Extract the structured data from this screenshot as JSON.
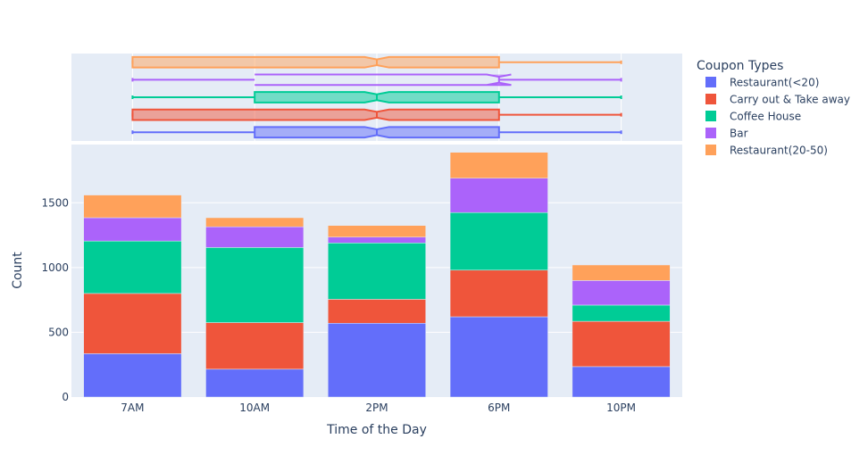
{
  "colors": {
    "plot_bg": "#e5ecf6",
    "grid": "#ffffff",
    "text": "#2a3f5f"
  },
  "chart_data": {
    "type": "bar",
    "barmode": "stack",
    "title": "",
    "xlabel": "Time of the Day",
    "ylabel": "Count",
    "categories": [
      "7AM",
      "10AM",
      "2PM",
      "6PM",
      "10PM"
    ],
    "ylim": [
      0,
      1950
    ],
    "yticks": [
      0,
      500,
      1000,
      1500
    ],
    "grid": true,
    "legend": {
      "title": "Coupon Types",
      "placement": "right"
    },
    "series": [
      {
        "name": "Restaurant(<20)",
        "color": "#636efa",
        "values": [
          335,
          215,
          570,
          620,
          235
        ]
      },
      {
        "name": "Carry out & Take away",
        "color": "#ef553b",
        "values": [
          465,
          360,
          185,
          360,
          350
        ]
      },
      {
        "name": "Coffee House",
        "color": "#00cc96",
        "values": [
          405,
          580,
          435,
          445,
          125
        ]
      },
      {
        "name": "Bar",
        "color": "#ab63fa",
        "values": [
          180,
          160,
          45,
          265,
          190
        ]
      },
      {
        "name": "Restaurant(20-50)",
        "color": "#ffa15a",
        "values": [
          175,
          70,
          90,
          200,
          120
        ]
      }
    ],
    "marginal": {
      "type": "box",
      "orientation": "horizontal",
      "notched": true,
      "boxes": [
        {
          "series": "Restaurant(<20)",
          "min": 0,
          "q1": 1,
          "median": 2,
          "q3": 3,
          "max": 4
        },
        {
          "series": "Carry out & Take away",
          "min": 0,
          "q1": 0,
          "median": 2,
          "q3": 3,
          "max": 4
        },
        {
          "series": "Coffee House",
          "min": 0,
          "q1": 1,
          "median": 2,
          "q3": 3,
          "max": 4
        },
        {
          "series": "Bar",
          "min": 0,
          "q1": 1,
          "median": 3,
          "q3": 3,
          "max": 4
        },
        {
          "series": "Restaurant(20-50)",
          "min": 0,
          "q1": 0,
          "median": 2,
          "q3": 3,
          "max": 4
        }
      ]
    }
  }
}
